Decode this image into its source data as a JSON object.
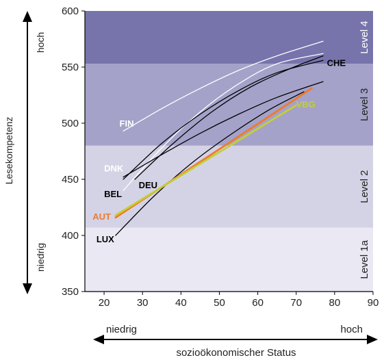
{
  "chart_data": {
    "type": "line",
    "title": "",
    "xlabel": "sozioökonomischer Status",
    "ylabel": "Lesekompetenz",
    "xlim": [
      15,
      90
    ],
    "ylim": [
      350,
      600
    ],
    "xticks": [
      "20",
      "30",
      "40",
      "50",
      "60",
      "70",
      "80",
      "90"
    ],
    "yticks": [
      "350",
      "400",
      "450",
      "500",
      "550",
      "600"
    ],
    "x_arrow_low": "niedrig",
    "x_arrow_high": "hoch",
    "y_arrow_low": "niedrig",
    "y_arrow_high": "hoch",
    "levels": [
      {
        "label": "Level 1a",
        "from": 350,
        "to": 407,
        "color": "#e9e8f3"
      },
      {
        "label": "Level 2",
        "from": 407,
        "to": 480,
        "color": "#d4d3e6"
      },
      {
        "label": "Level 3",
        "from": 480,
        "to": 553,
        "color": "#a4a2c9"
      },
      {
        "label": "Level 4",
        "from": 553,
        "to": 600,
        "color": "#7774ac"
      }
    ],
    "series": [
      {
        "name": "FIN",
        "color": "#ffffff",
        "width": 1.3,
        "x": [
          25,
          35,
          45,
          55,
          65,
          77
        ],
        "y": [
          493,
          513,
          531,
          547,
          560,
          573
        ],
        "label_at": [
          24,
          497
        ]
      },
      {
        "name": "DNK",
        "color": "#ffffff",
        "width": 1.3,
        "x": [
          25,
          35,
          45,
          55,
          65,
          77
        ],
        "y": [
          440,
          478,
          510,
          535,
          553,
          562
        ],
        "label_at": [
          20,
          457
        ]
      },
      {
        "name": "BEL",
        "color": "#000000",
        "width": 1.3,
        "x": [
          25,
          35,
          45,
          55,
          65,
          77
        ],
        "y": [
          452,
          472,
          491,
          508,
          523,
          537
        ],
        "label_at": [
          20,
          434
        ]
      },
      {
        "name": "DEU",
        "color": "#000000",
        "width": 1.3,
        "x": [
          28,
          38,
          48,
          58,
          68,
          77
        ],
        "y": [
          450,
          482,
          510,
          532,
          548,
          560
        ],
        "label_at": [
          29,
          442
        ]
      },
      {
        "name": "CHE",
        "color": "#000000",
        "width": 1.3,
        "x": [
          25,
          35,
          45,
          55,
          65,
          77
        ],
        "y": [
          450,
          482,
          508,
          529,
          545,
          556
        ],
        "label_at": [
          78,
          551
        ]
      },
      {
        "name": "LUX",
        "color": "#000000",
        "width": 1.3,
        "x": [
          23,
          33,
          43,
          53,
          63,
          72
        ],
        "y": [
          400,
          435,
          465,
          490,
          512,
          528
        ],
        "label_at": [
          18,
          394
        ]
      },
      {
        "name": "AUT",
        "color": "#f07a2a",
        "width": 2.8,
        "x": [
          23,
          74
        ],
        "y": [
          416,
          531
        ],
        "label_at": [
          17,
          414
        ]
      },
      {
        "name": "VBG",
        "color": "#c2cf3a",
        "width": 2.8,
        "x": [
          23,
          70
        ],
        "y": [
          418,
          516
        ],
        "label_at": [
          70,
          514
        ]
      }
    ]
  }
}
